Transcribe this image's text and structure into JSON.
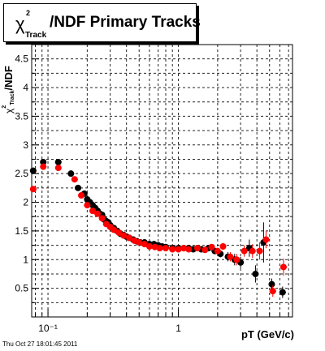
{
  "title": {
    "symbol": "χ",
    "superscript": "2",
    "subscript": "Track",
    "text": "/NDF  Primary Tracks"
  },
  "axes": {
    "xlabel": "pT (GeV/c)",
    "ylabel_symbol": "χ",
    "ylabel_superscript": "2",
    "ylabel_subscript": "Track",
    "ylabel_suffix": "/NDF"
  },
  "timestamp": "Thu Oct 27 18:01:45 2011",
  "colors": {
    "series_black": "#000000",
    "series_red": "#ff0000",
    "grid": "#000000"
  },
  "chart_data": {
    "type": "scatter",
    "x_scale": "log",
    "xlim": [
      0.075,
      7.5
    ],
    "ylim": [
      0,
      4.75
    ],
    "grid": true,
    "yticks": [
      0.5,
      1,
      1.5,
      2,
      2.5,
      3,
      3.5,
      4,
      4.5
    ],
    "ytick_labels": [
      "0.5",
      "1",
      "1.5",
      "2",
      "2.5",
      "3",
      "3.5",
      "4",
      "4.5"
    ],
    "xticks": [
      0.1,
      1
    ],
    "xtick_labels": [
      "10⁻¹",
      "1"
    ],
    "series": [
      {
        "color": "#000000",
        "x": [
          0.077,
          0.092,
          0.12,
          0.15,
          0.17,
          0.19,
          0.2,
          0.21,
          0.22,
          0.23,
          0.24,
          0.25,
          0.26,
          0.27,
          0.28,
          0.29,
          0.3,
          0.32,
          0.34,
          0.36,
          0.38,
          0.4,
          0.42,
          0.45,
          0.48,
          0.51,
          0.55,
          0.6,
          0.65,
          0.7,
          0.75,
          0.8,
          0.9,
          1.0,
          1.1,
          1.2,
          1.3,
          1.4,
          1.5,
          1.7,
          1.9,
          2.1,
          2.4,
          2.7,
          3.0,
          3.5,
          3.9,
          4.5,
          5.2,
          6.3
        ],
        "y": [
          2.55,
          2.7,
          2.7,
          2.5,
          2.25,
          2.15,
          2.05,
          2.0,
          1.95,
          1.9,
          1.85,
          1.8,
          1.78,
          1.7,
          1.67,
          1.65,
          1.6,
          1.55,
          1.5,
          1.45,
          1.43,
          1.4,
          1.38,
          1.35,
          1.32,
          1.3,
          1.3,
          1.27,
          1.27,
          1.25,
          1.23,
          1.22,
          1.2,
          1.2,
          1.2,
          1.2,
          1.18,
          1.2,
          1.18,
          1.2,
          1.15,
          1.1,
          1.05,
          1.0,
          0.95,
          1.2,
          0.75,
          1.3,
          0.57,
          0.43
        ],
        "yerr": [
          0.02,
          0.02,
          0.02,
          0.02,
          0.02,
          0.02,
          0.02,
          0.02,
          0.02,
          0.02,
          0.02,
          0.02,
          0.02,
          0.02,
          0.02,
          0.02,
          0.02,
          0.02,
          0.02,
          0.02,
          0.02,
          0.02,
          0.02,
          0.02,
          0.02,
          0.02,
          0.02,
          0.02,
          0.02,
          0.02,
          0.02,
          0.02,
          0.02,
          0.02,
          0.02,
          0.02,
          0.02,
          0.03,
          0.03,
          0.04,
          0.05,
          0.06,
          0.08,
          0.1,
          0.1,
          0.15,
          0.15,
          0.35,
          0.1,
          0.1
        ]
      },
      {
        "color": "#ff0000",
        "x": [
          0.077,
          0.092,
          0.12,
          0.16,
          0.18,
          0.2,
          0.22,
          0.24,
          0.26,
          0.28,
          0.3,
          0.32,
          0.35,
          0.38,
          0.42,
          0.46,
          0.5,
          0.55,
          0.6,
          0.66,
          0.72,
          0.8,
          0.9,
          1.0,
          1.1,
          1.2,
          1.4,
          1.6,
          1.8,
          2.0,
          2.2,
          2.5,
          2.8,
          3.2,
          3.7,
          4.2,
          4.7,
          5.3,
          6.4
        ],
        "y": [
          2.23,
          2.62,
          2.6,
          2.4,
          2.12,
          1.95,
          1.85,
          1.8,
          1.72,
          1.62,
          1.57,
          1.52,
          1.47,
          1.42,
          1.38,
          1.33,
          1.3,
          1.27,
          1.23,
          1.22,
          1.2,
          1.2,
          1.18,
          1.18,
          1.2,
          1.18,
          1.2,
          1.17,
          1.22,
          1.15,
          1.23,
          1.05,
          1.0,
          1.15,
          1.15,
          1.15,
          1.35,
          0.45,
          0.87
        ],
        "yerr": [
          0.02,
          0.02,
          0.02,
          0.02,
          0.02,
          0.02,
          0.02,
          0.02,
          0.02,
          0.02,
          0.02,
          0.02,
          0.02,
          0.02,
          0.02,
          0.02,
          0.02,
          0.02,
          0.02,
          0.02,
          0.02,
          0.02,
          0.02,
          0.02,
          0.02,
          0.02,
          0.02,
          0.03,
          0.04,
          0.05,
          0.06,
          0.08,
          0.1,
          0.1,
          0.12,
          0.15,
          0.15,
          0.1,
          0.15
        ]
      }
    ]
  }
}
